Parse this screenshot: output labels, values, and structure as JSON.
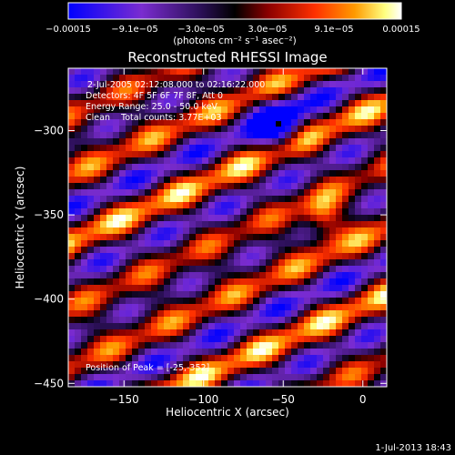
{
  "chart_data": {
    "type": "heatmap",
    "title": "Reconstructed RHESSI Image",
    "xlabel": "Heliocentric X (arcsec)",
    "ylabel": "Heliocentric Y (arcsec)",
    "xlim": [
      -185,
      15
    ],
    "ylim": [
      -452,
      -263
    ],
    "x_ticks": [
      -150,
      -100,
      -50,
      0
    ],
    "y_ticks": [
      -300,
      -350,
      -400,
      -450
    ],
    "x_tick_labels": [
      "−150",
      "−100",
      "−50",
      "0"
    ],
    "y_tick_labels": [
      "−300",
      "−350",
      "−400",
      "−450"
    ],
    "annotations": [
      "2-Jul-2005 02:12:08.000 to 02:16:22.000",
      "Detectors: 4F 5F 6F 7F 8F, Att 0",
      "Energy Range: 25.0 - 50.0 keV",
      "Clean    Total counts: 3.77E+03"
    ],
    "peak_label": "Position of Peak = [-25,-352]",
    "peak_position": [
      -25,
      -352
    ],
    "min_marker_position": [
      -53,
      -296
    ],
    "colorbar": {
      "min": -0.00015,
      "max": 0.00015,
      "tick_labels": [
        "−0.00015",
        "−9.1e−05",
        "−3.0e−05",
        "3.0e−05",
        "9.1e−05",
        "0.00015"
      ],
      "unit_label": "(photons cm⁻² s⁻¹ asec⁻²)",
      "colors": [
        "#0000ff",
        "#7a2cd0",
        "#2a0f55",
        "#000000",
        "#8b0000",
        "#ff3000",
        "#ff9a00",
        "#ffff80",
        "#ffffff"
      ]
    },
    "grid": false,
    "legend": "none"
  },
  "footer": {
    "timestamp": "1-Jul-2013 18:43"
  }
}
